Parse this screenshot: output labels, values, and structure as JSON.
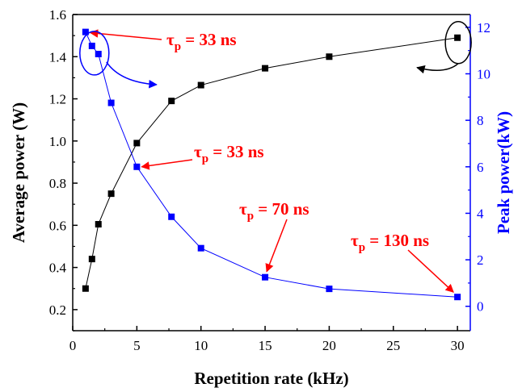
{
  "chart_data": {
    "type": "line",
    "title": "",
    "xlabel": "Repetition rate (kHz)",
    "ylabel": "Average power (W)",
    "y2label": "Peak power(kW)",
    "xlim": [
      0,
      31
    ],
    "ylim": [
      0.1,
      1.6
    ],
    "y2lim": [
      -1.05,
      12.55
    ],
    "xticks": [
      0,
      5,
      10,
      15,
      20,
      25,
      30
    ],
    "yticks": [
      0.2,
      0.4,
      0.6,
      0.8,
      1.0,
      1.2,
      1.4,
      1.6
    ],
    "y2ticks": [
      0,
      2,
      4,
      6,
      8,
      10,
      12
    ],
    "x": [
      1,
      1.5,
      2,
      3,
      5,
      7.7,
      10,
      15,
      20,
      30
    ],
    "series": [
      {
        "axis": "left",
        "color": "#000000",
        "values": [
          0.3,
          0.44,
          0.605,
          0.75,
          0.99,
          1.19,
          1.265,
          1.345,
          1.4,
          1.49
        ]
      },
      {
        "axis": "right",
        "color": "#0000ff",
        "values": [
          11.8,
          11.2,
          10.85,
          8.75,
          6.0,
          3.85,
          2.5,
          1.25,
          0.75,
          0.4
        ]
      }
    ],
    "annotations": [
      {
        "label": "τ",
        "sub": "p",
        "text": " = 33 ns"
      },
      {
        "label": "τ",
        "sub": "p",
        "text": " = 33 ns"
      },
      {
        "label": "τ",
        "sub": "p",
        "text": " = 70 ns"
      },
      {
        "label": "τ",
        "sub": "p",
        "text": " = 130 ns"
      }
    ]
  }
}
